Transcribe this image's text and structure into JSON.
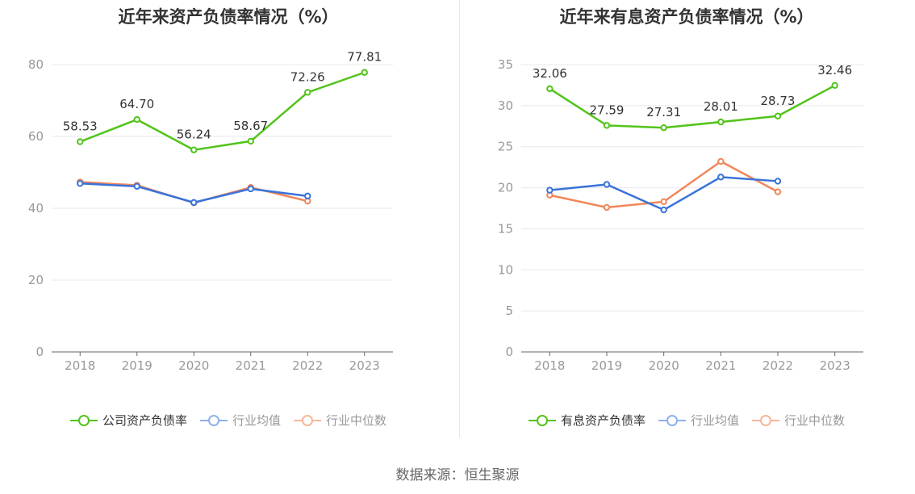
{
  "footer": {
    "source": "数据来源：恒生聚源"
  },
  "chart_data": [
    {
      "type": "line",
      "title": "近年来资产负债率情况（%）",
      "categories": [
        "2018",
        "2019",
        "2020",
        "2021",
        "2022",
        "2023"
      ],
      "ylim": [
        0,
        80
      ],
      "yticks": [
        0,
        20,
        40,
        60,
        80
      ],
      "grid": true,
      "legend_position": "bottom",
      "series": [
        {
          "name": "公司资产负债率",
          "color": "#52c41a",
          "values": [
            58.53,
            64.7,
            56.24,
            58.67,
            72.26,
            77.81
          ],
          "labels": [
            "58.53",
            "64.70",
            "56.24",
            "58.67",
            "72.26",
            "77.81"
          ],
          "show_labels": true
        },
        {
          "name": "行业均值",
          "color": "#3a73d9",
          "values": [
            46.9,
            46.1,
            41.6,
            45.4,
            43.4,
            null
          ],
          "show_labels": false
        },
        {
          "name": "行业中位数",
          "color": "#f0875a",
          "values": [
            47.3,
            46.4,
            41.5,
            45.8,
            42.0,
            null
          ],
          "show_labels": false
        }
      ]
    },
    {
      "type": "line",
      "title": "近年来有息资产负债率情况（%）",
      "categories": [
        "2018",
        "2019",
        "2020",
        "2021",
        "2022",
        "2023"
      ],
      "ylim": [
        0,
        35
      ],
      "yticks": [
        0,
        5,
        10,
        15,
        20,
        25,
        30,
        35
      ],
      "grid": true,
      "legend_position": "bottom",
      "series": [
        {
          "name": "有息资产负债率",
          "color": "#52c41a",
          "values": [
            32.06,
            27.59,
            27.31,
            28.01,
            28.73,
            32.46
          ],
          "labels": [
            "32.06",
            "27.59",
            "27.31",
            "28.01",
            "28.73",
            "32.46"
          ],
          "show_labels": true
        },
        {
          "name": "行业均值",
          "color": "#3a73d9",
          "values": [
            19.7,
            20.4,
            17.3,
            21.3,
            20.8,
            null
          ],
          "show_labels": false
        },
        {
          "name": "行业中位数",
          "color": "#f0875a",
          "values": [
            19.1,
            17.6,
            18.3,
            23.2,
            19.5,
            null
          ],
          "show_labels": false
        }
      ]
    }
  ]
}
